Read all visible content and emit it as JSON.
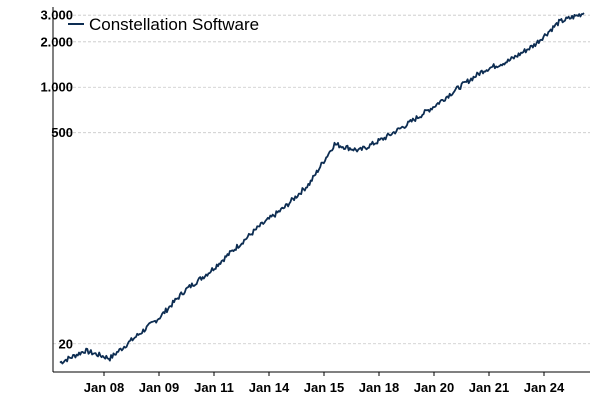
{
  "chart_data": {
    "type": "line",
    "title": "",
    "xlabel": "",
    "ylabel": "",
    "y_scale": "log",
    "ylim": [
      13,
      3400
    ],
    "grid": true,
    "legend_position": "top-left",
    "x_tick_labels": [
      "Jan 08",
      "Jan 09",
      "Jan 11",
      "Jan 14",
      "Jan 15",
      "Jan 18",
      "Jan 20",
      "Jan 21",
      "Jan 24"
    ],
    "y_ticks": [
      20,
      500,
      1000,
      2000,
      3000
    ],
    "y_tick_labels": [
      "20",
      "500",
      "1.000",
      "2.000",
      "3.000"
    ],
    "series": [
      {
        "name": "Constellation Software",
        "color": "#0d2d52",
        "points": [
          [
            "Jan 08",
            15
          ],
          [
            "Jan 08",
            18
          ],
          [
            "Jan 09",
            16
          ],
          [
            "Jan 09",
            22
          ],
          [
            "Jan 09",
            30
          ],
          [
            "Jan 11",
            45
          ],
          [
            "Jan 11",
            60
          ],
          [
            "Jan 14",
            85
          ],
          [
            "Jan 14",
            120
          ],
          [
            "Jan 14",
            160
          ],
          [
            "Jan 15",
            230
          ],
          [
            "Jan 15",
            420
          ],
          [
            "Jan 15",
            380
          ],
          [
            "Jan 18",
            460
          ],
          [
            "Jan 18",
            580
          ],
          [
            "Jan 20",
            750
          ],
          [
            "Jan 20",
            1000
          ],
          [
            "Jan 21",
            1300
          ],
          [
            "Jan 21",
            1500
          ],
          [
            "Jan 24",
            1900
          ],
          [
            "Jan 24",
            2700
          ],
          [
            "Jan 24",
            3100
          ]
        ]
      }
    ]
  }
}
